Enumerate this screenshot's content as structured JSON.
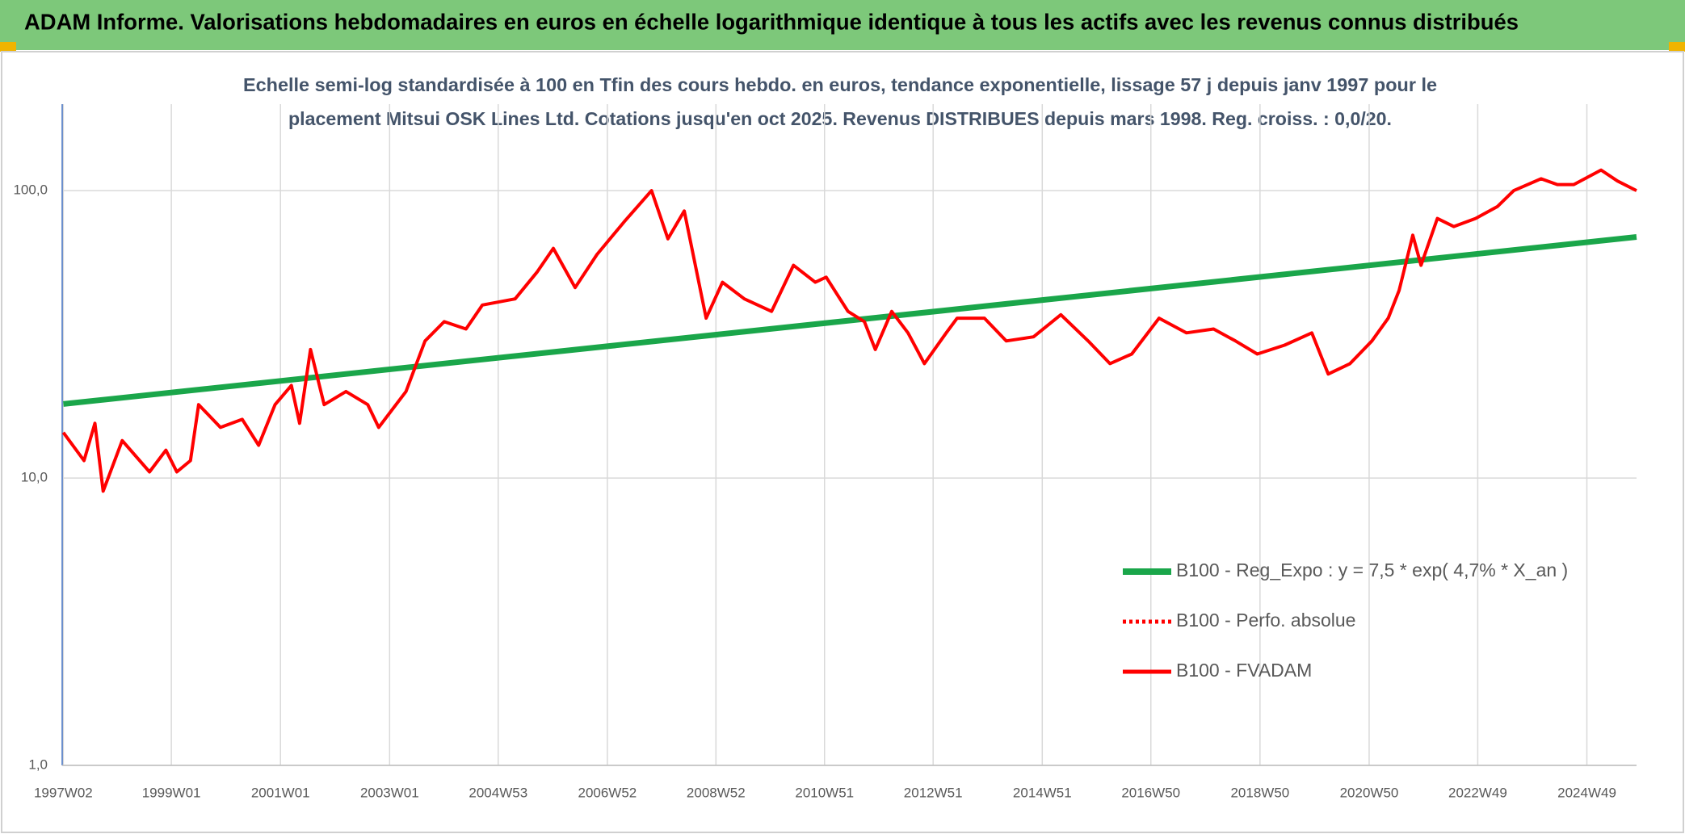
{
  "chart_data": {
    "type": "line",
    "title": "ADAM Informe. Valorisations hebdomadaires en euros en échelle logarithmique identique à tous les actifs avec les revenus connus distribués",
    "subtitle": [
      "Echelle semi-log standardisée à 100 en Tfin des cours hebdo. en euros, tendance exponentielle, lissage 57 j depuis janv 1997 pour le",
      "placement Mitsui OSK Lines Ltd. Cotations jusqu'en oct 2025. Revenus DISTRIBUES depuis mars 1998. Reg. croiss. : 0,0/20."
    ],
    "log_scale": true,
    "grid": true,
    "legend": "lower right",
    "xlim": [
      1997.0,
      2025.85
    ],
    "ylim": [
      1,
      200
    ],
    "yticks": [
      {
        "value": 1,
        "label": "1,0"
      },
      {
        "value": 10,
        "label": "10,0"
      },
      {
        "value": 100,
        "label": "100,0"
      }
    ],
    "xticks": [
      {
        "value": 1997.02,
        "label": "1997W02"
      },
      {
        "value": 1999.0,
        "label": "1999W01"
      },
      {
        "value": 2001.0,
        "label": "2001W01"
      },
      {
        "value": 2003.0,
        "label": "2003W01"
      },
      {
        "value": 2004.99,
        "label": "2004W53"
      },
      {
        "value": 2006.99,
        "label": "2006W52"
      },
      {
        "value": 2008.98,
        "label": "2008W52"
      },
      {
        "value": 2010.97,
        "label": "2010W51"
      },
      {
        "value": 2012.96,
        "label": "2012W51"
      },
      {
        "value": 2014.96,
        "label": "2014W51"
      },
      {
        "value": 2016.95,
        "label": "2016W50"
      },
      {
        "value": 2018.95,
        "label": "2018W50"
      },
      {
        "value": 2020.95,
        "label": "2020W50"
      },
      {
        "value": 2022.94,
        "label": "2022W49"
      },
      {
        "value": 2024.94,
        "label": "2024W49"
      }
    ],
    "series": [
      {
        "name": "B100 - Reg_Expo : y = 7,5 * exp( 4,7% *  X_an )",
        "color": "#1aa64a",
        "style": "solid",
        "width": 7,
        "x": [
          1997.02,
          2025.85
        ],
        "values": [
          18.1,
          69
        ]
      },
      {
        "name": "B100 - Perfo. absolue",
        "color": "#ff0000",
        "style": "dotted",
        "width": 4,
        "x": [],
        "values": []
      },
      {
        "name": "B100 - FVADAM",
        "color": "#ff0000",
        "style": "solid",
        "width": 4,
        "x": [
          1997.02,
          1997.4,
          1997.6,
          1997.75,
          1998.1,
          1998.6,
          1998.9,
          1999.1,
          1999.35,
          1999.5,
          1999.9,
          2000.3,
          2000.6,
          2000.9,
          2001.2,
          2001.35,
          2001.55,
          2001.8,
          2002.2,
          2002.6,
          2002.8,
          2003.3,
          2003.65,
          2004.0,
          2004.4,
          2004.7,
          2005.3,
          2005.7,
          2006.0,
          2006.4,
          2006.8,
          2007.3,
          2007.8,
          2008.1,
          2008.4,
          2008.8,
          2009.1,
          2009.5,
          2010.0,
          2010.4,
          2010.8,
          2011.0,
          2011.4,
          2011.7,
          2011.9,
          2012.2,
          2012.5,
          2012.8,
          2013.2,
          2013.4,
          2013.9,
          2014.3,
          2014.8,
          2015.3,
          2015.8,
          2016.2,
          2016.6,
          2017.1,
          2017.6,
          2018.1,
          2018.5,
          2018.9,
          2019.4,
          2019.9,
          2020.2,
          2020.6,
          2021.0,
          2021.3,
          2021.5,
          2021.75,
          2021.9,
          2022.2,
          2022.5,
          2022.9,
          2023.3,
          2023.6,
          2024.1,
          2024.4,
          2024.7,
          2025.2,
          2025.5,
          2025.85
        ],
        "values": [
          14.4,
          11.5,
          15.5,
          9.0,
          13.5,
          10.5,
          12.5,
          10.5,
          11.5,
          18,
          15,
          16,
          13,
          18,
          21,
          15.5,
          28,
          18,
          20,
          18,
          15,
          20,
          30,
          35,
          33,
          40,
          42,
          52,
          63,
          46,
          60,
          78,
          100,
          68,
          85,
          36,
          48,
          42,
          38,
          55,
          48,
          50,
          38,
          35,
          28,
          38,
          32,
          25,
          32,
          36,
          36,
          30,
          31,
          37,
          30,
          25,
          27,
          36,
          32,
          33,
          30,
          27,
          29,
          32,
          23,
          25,
          30,
          36,
          45,
          70,
          55,
          80,
          75,
          80,
          88,
          100,
          110,
          105,
          105,
          118,
          108,
          100
        ]
      }
    ]
  }
}
